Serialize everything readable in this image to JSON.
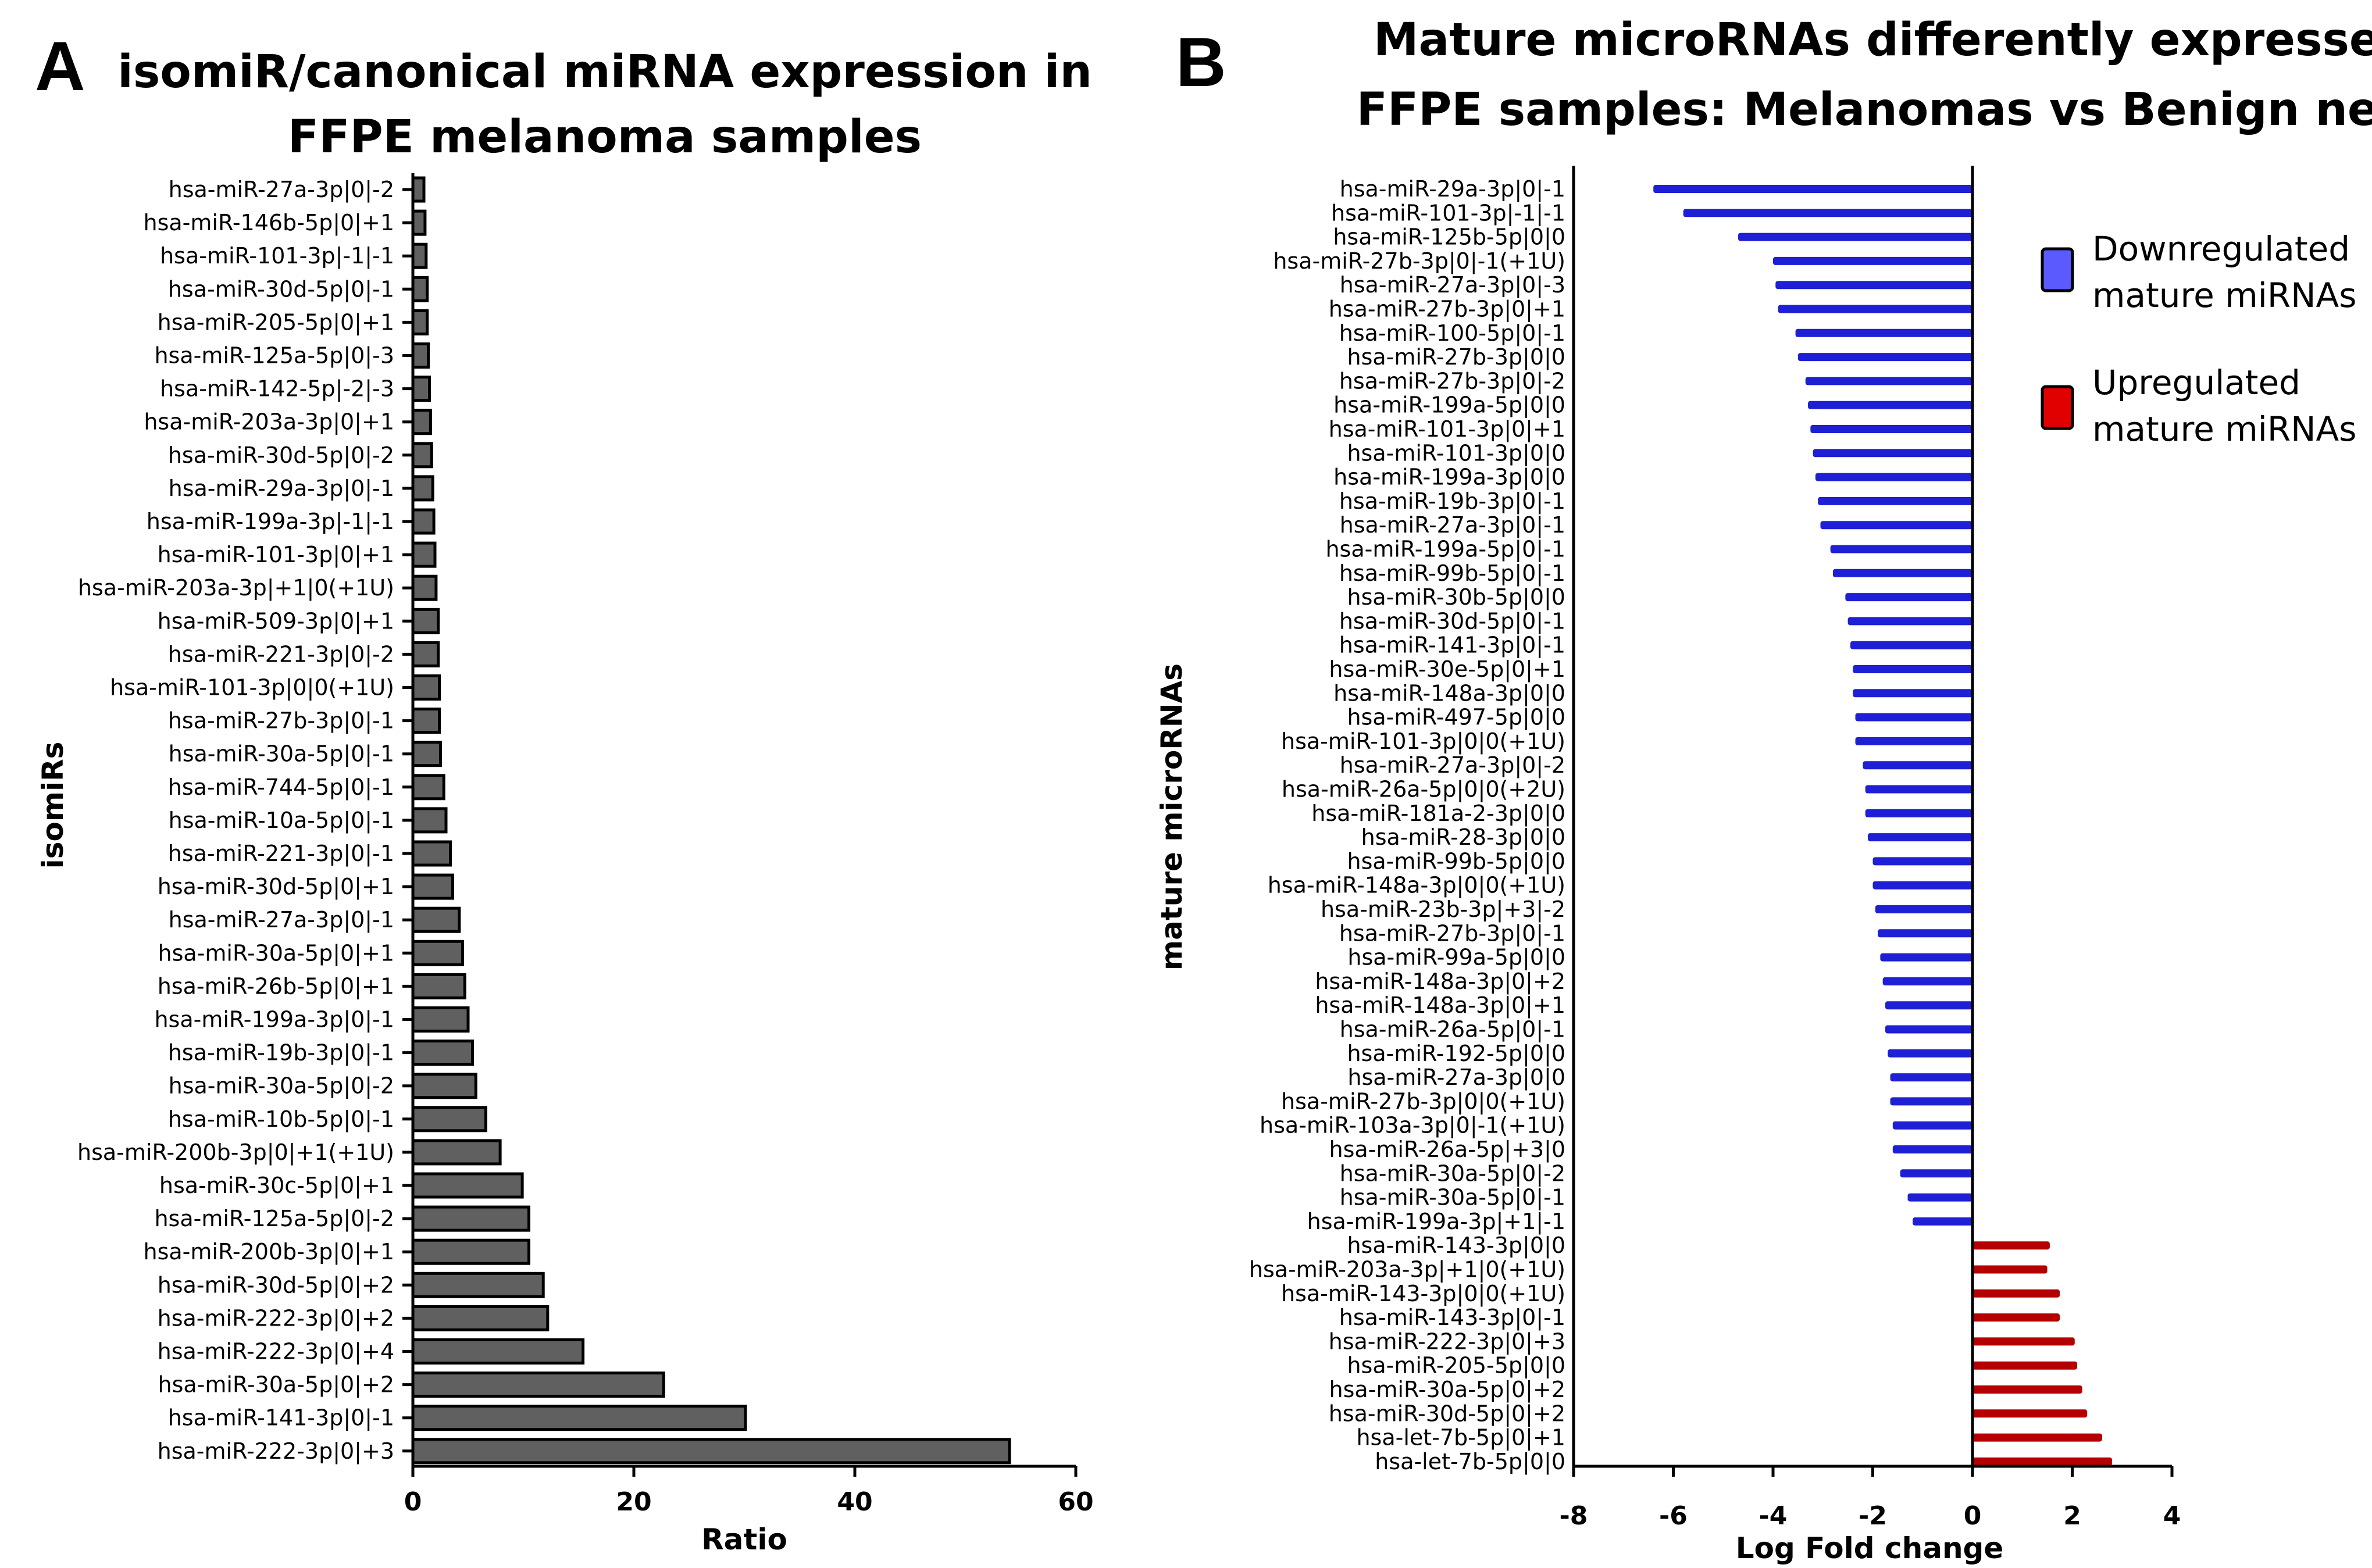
{
  "chart_data": [
    {
      "panel": "A",
      "type": "bar",
      "orientation": "horizontal",
      "title_lines": [
        "isomiR/canonical miRNA expression in",
        "FFPE melanoma samples"
      ],
      "xlabel": "Ratio",
      "ylabel": "isomiRs",
      "xlim": [
        0,
        60
      ],
      "xticks": [
        0,
        20,
        40,
        60
      ],
      "bar_color": "#606060",
      "categories": [
        "hsa-miR-27a-3p|0|-2",
        "hsa-miR-146b-5p|0|+1",
        "hsa-miR-101-3p|-1|-1",
        "hsa-miR-30d-5p|0|-1",
        "hsa-miR-205-5p|0|+1",
        "hsa-miR-125a-5p|0|-3",
        "hsa-miR-142-5p|-2|-3",
        "hsa-miR-203a-3p|0|+1",
        "hsa-miR-30d-5p|0|-2",
        "hsa-miR-29a-3p|0|-1",
        "hsa-miR-199a-3p|-1|-1",
        "hsa-miR-101-3p|0|+1",
        "hsa-miR-203a-3p|+1|0(+1U)",
        "hsa-miR-509-3p|0|+1",
        "hsa-miR-221-3p|0|-2",
        "hsa-miR-101-3p|0|0(+1U)",
        "hsa-miR-27b-3p|0|-1",
        "hsa-miR-30a-5p|0|-1",
        "hsa-miR-744-5p|0|-1",
        "hsa-miR-10a-5p|0|-1",
        "hsa-miR-221-3p|0|-1",
        "hsa-miR-30d-5p|0|+1",
        "hsa-miR-27a-3p|0|-1",
        "hsa-miR-30a-5p|0|+1",
        "hsa-miR-26b-5p|0|+1",
        "hsa-miR-199a-3p|0|-1",
        "hsa-miR-19b-3p|0|-1",
        "hsa-miR-30a-5p|0|-2",
        "hsa-miR-10b-5p|0|-1",
        "hsa-miR-200b-3p|0|+1(+1U)",
        "hsa-miR-30c-5p|0|+1",
        "hsa-miR-125a-5p|0|-2",
        "hsa-miR-200b-3p|0|+1",
        "hsa-miR-30d-5p|0|+2",
        "hsa-miR-222-3p|0|+2",
        "hsa-miR-222-3p|0|+4",
        "hsa-miR-30a-5p|0|+2",
        "hsa-miR-141-3p|0|-1",
        "hsa-miR-222-3p|0|+3"
      ],
      "values": [
        1.0,
        1.1,
        1.2,
        1.3,
        1.3,
        1.4,
        1.5,
        1.6,
        1.7,
        1.8,
        1.9,
        2.0,
        2.1,
        2.3,
        2.3,
        2.4,
        2.4,
        2.5,
        2.8,
        3.0,
        3.4,
        3.6,
        4.2,
        4.5,
        4.7,
        5.0,
        5.4,
        5.7,
        6.6,
        7.9,
        9.9,
        10.5,
        10.5,
        11.8,
        12.2,
        15.4,
        22.7,
        30.1,
        54.0
      ]
    },
    {
      "panel": "B",
      "type": "bar",
      "orientation": "horizontal",
      "title_lines": [
        "Mature microRNAs differently expressed in",
        "FFPE samples:  Melanomas vs Benign nevi"
      ],
      "xlabel": "Log Fold change",
      "ylabel": "mature microRNAs",
      "xlim": [
        -8,
        4
      ],
      "xticks": [
        -8,
        -6,
        -4,
        -2,
        0,
        2,
        4
      ],
      "down_color": "#1f1fd6",
      "up_color": "#b40000",
      "legend": [
        {
          "line1": "Downregulated",
          "line2": "mature miRNAs",
          "color": "#5a5aff"
        },
        {
          "line1": "Upregulated",
          "line2": "mature miRNAs",
          "color": "#e00000"
        }
      ],
      "legend_position": "right",
      "categories": [
        "hsa-miR-29a-3p|0|-1",
        "hsa-miR-101-3p|-1|-1",
        "hsa-miR-125b-5p|0|0",
        "hsa-miR-27b-3p|0|-1(+1U)",
        "hsa-miR-27a-3p|0|-3",
        "hsa-miR-27b-3p|0|+1",
        "hsa-miR-100-5p|0|-1",
        "hsa-miR-27b-3p|0|0",
        "hsa-miR-27b-3p|0|-2",
        "hsa-miR-199a-5p|0|0",
        "hsa-miR-101-3p|0|+1",
        "hsa-miR-101-3p|0|0",
        "hsa-miR-199a-3p|0|0",
        "hsa-miR-19b-3p|0|-1",
        "hsa-miR-27a-3p|0|-1",
        "hsa-miR-199a-5p|0|-1",
        "hsa-miR-99b-5p|0|-1",
        "hsa-miR-30b-5p|0|0",
        "hsa-miR-30d-5p|0|-1",
        "hsa-miR-141-3p|0|-1",
        "hsa-miR-30e-5p|0|+1",
        "hsa-miR-148a-3p|0|0",
        "hsa-miR-497-5p|0|0",
        "hsa-miR-101-3p|0|0(+1U)",
        "hsa-miR-27a-3p|0|-2",
        "hsa-miR-26a-5p|0|0(+2U)",
        "hsa-miR-181a-2-3p|0|0",
        "hsa-miR-28-3p|0|0",
        "hsa-miR-99b-5p|0|0",
        "hsa-miR-148a-3p|0|0(+1U)",
        "hsa-miR-23b-3p|+3|-2",
        "hsa-miR-27b-3p|0|-1",
        "hsa-miR-99a-5p|0|0",
        "hsa-miR-148a-3p|0|+2",
        "hsa-miR-148a-3p|0|+1",
        "hsa-miR-26a-5p|0|-1",
        "hsa-miR-192-5p|0|0",
        "hsa-miR-27a-3p|0|0",
        "hsa-miR-27b-3p|0|0(+1U)",
        "hsa-miR-103a-3p|0|-1(+1U)",
        "hsa-miR-26a-5p|+3|0",
        "hsa-miR-30a-5p|0|-2",
        "hsa-miR-30a-5p|0|-1",
        "hsa-miR-199a-3p|+1|-1",
        "hsa-miR-143-3p|0|0",
        "hsa-miR-203a-3p|+1|0(+1U)",
        "hsa-miR-143-3p|0|0(+1U)",
        "hsa-miR-143-3p|0|-1",
        "hsa-miR-222-3p|0|+3",
        "hsa-miR-205-5p|0|0",
        "hsa-miR-30a-5p|0|+2",
        "hsa-miR-30d-5p|0|+2",
        "hsa-let-7b-5p|0|+1",
        "hsa-let-7b-5p|0|0"
      ],
      "values": [
        -6.4,
        -5.8,
        -4.7,
        -4.0,
        -3.95,
        -3.9,
        -3.55,
        -3.5,
        -3.35,
        -3.3,
        -3.25,
        -3.2,
        -3.15,
        -3.1,
        -3.05,
        -2.85,
        -2.8,
        -2.55,
        -2.5,
        -2.45,
        -2.4,
        -2.4,
        -2.35,
        -2.35,
        -2.2,
        -2.15,
        -2.15,
        -2.1,
        -2.0,
        -2.0,
        -1.95,
        -1.9,
        -1.85,
        -1.8,
        -1.75,
        -1.75,
        -1.7,
        -1.65,
        -1.65,
        -1.6,
        -1.6,
        -1.45,
        -1.3,
        -1.2,
        1.55,
        1.5,
        1.75,
        1.75,
        2.05,
        2.1,
        2.2,
        2.3,
        2.6,
        2.8
      ]
    }
  ]
}
